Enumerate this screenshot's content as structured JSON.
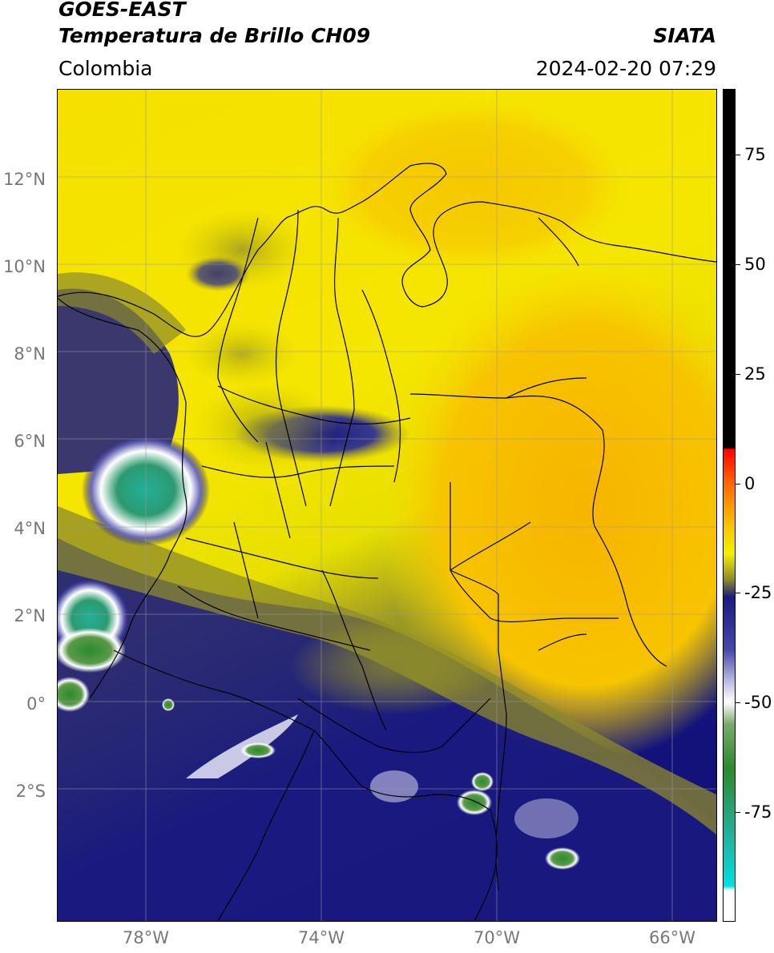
{
  "header": {
    "title_line1": "GOES-EAST",
    "title_line2": "Temperatura de Brillo CH09",
    "brand": "SIATA",
    "region": "Colombia",
    "timestamp": "2024-02-20 07:29"
  },
  "map": {
    "lon_range": [
      -80,
      -65
    ],
    "lat_range": [
      -5,
      14
    ],
    "lat_ticks": [
      {
        "value": 12,
        "label": "12°N"
      },
      {
        "value": 10,
        "label": "10°N"
      },
      {
        "value": 8,
        "label": "8°N"
      },
      {
        "value": 6,
        "label": "6°N"
      },
      {
        "value": 4,
        "label": "4°N"
      },
      {
        "value": 2,
        "label": "2°N"
      },
      {
        "value": 0,
        "label": "0°"
      },
      {
        "value": -2,
        "label": "2°S"
      }
    ],
    "lon_ticks": [
      {
        "value": -78,
        "label": "78°W"
      },
      {
        "value": -74,
        "label": "74°W"
      },
      {
        "value": -70,
        "label": "70°W"
      },
      {
        "value": -66,
        "label": "66°W"
      }
    ],
    "colors": {
      "warm_orange": "#f7b400",
      "yellow": "#f5f000",
      "olive": "#8c8a2c",
      "navy": "#1a1a80",
      "white": "#ffffff",
      "green": "#2c8a2c",
      "teal": "#22b09a",
      "border": "#000000",
      "grid": "#9a9a9a"
    }
  },
  "colorbar": {
    "range": [
      -100,
      90
    ],
    "ticks": [
      {
        "value": 75,
        "label": "75"
      },
      {
        "value": 50,
        "label": "50"
      },
      {
        "value": 25,
        "label": "25"
      },
      {
        "value": 0,
        "label": "0"
      },
      {
        "value": -25,
        "label": "-25"
      },
      {
        "value": -50,
        "label": "-50"
      },
      {
        "value": -75,
        "label": "-75"
      }
    ],
    "stops": [
      {
        "value": 90,
        "color": "#000000"
      },
      {
        "value": 8,
        "color": "#000000"
      },
      {
        "value": 7.9,
        "color": "#ff0000"
      },
      {
        "value": 0,
        "color": "#ff6a00"
      },
      {
        "value": -10,
        "color": "#f5c800"
      },
      {
        "value": -16,
        "color": "#f5f000"
      },
      {
        "value": -22,
        "color": "#8c8a2c"
      },
      {
        "value": -26,
        "color": "#1a1a80"
      },
      {
        "value": -38,
        "color": "#4848a8"
      },
      {
        "value": -46,
        "color": "#c8c8e8"
      },
      {
        "value": -50,
        "color": "#ffffff"
      },
      {
        "value": -55,
        "color": "#7aaa6a"
      },
      {
        "value": -65,
        "color": "#2c8a2c"
      },
      {
        "value": -80,
        "color": "#22b09a"
      },
      {
        "value": -92,
        "color": "#00e0e0"
      },
      {
        "value": -93,
        "color": "#ffffff"
      },
      {
        "value": -100,
        "color": "#ffffff"
      }
    ]
  }
}
